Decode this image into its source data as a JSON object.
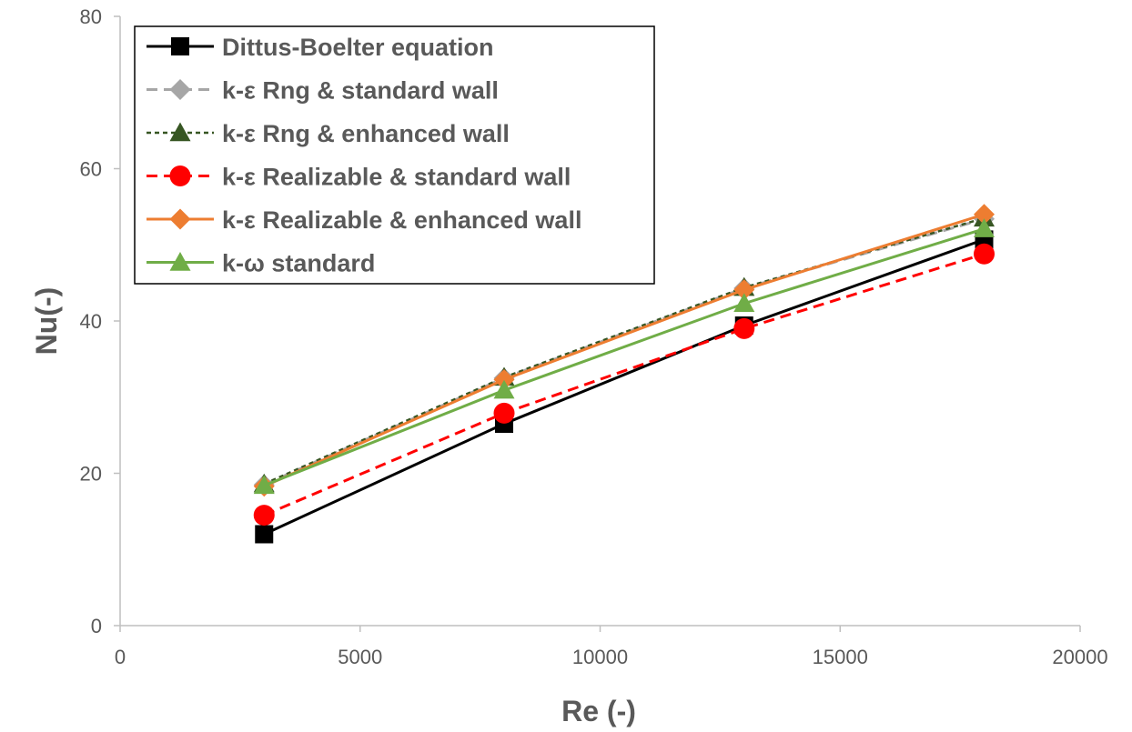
{
  "chart_data": {
    "type": "line",
    "title": "",
    "xlabel": "Re (-)",
    "ylabel": "Nu(-)",
    "xlim": [
      0,
      20000
    ],
    "ylim": [
      0,
      80
    ],
    "xticks": [
      "0",
      "5000",
      "10000",
      "15000",
      "20000"
    ],
    "yticks": [
      "0",
      "20",
      "40",
      "60",
      "80"
    ],
    "grid": false,
    "legend_position": "top-left",
    "x": [
      3000,
      8000,
      13000,
      18000
    ],
    "series": [
      {
        "name": "Dittus-Boelter equation",
        "values": [
          12.0,
          26.5,
          39.4,
          50.7
        ],
        "color": "#000000",
        "marker": "square",
        "line": "solid"
      },
      {
        "name": "k-ε Rng & standard wall",
        "values": [
          18.5,
          32.5,
          44.3,
          53.4
        ],
        "color": "#a6a6a6",
        "marker": "diamond",
        "line": "dashed"
      },
      {
        "name": "k-ε Rng & enhanced wall",
        "values": [
          18.6,
          32.6,
          44.4,
          53.5
        ],
        "color": "#375623",
        "marker": "triangle",
        "line": "dotted"
      },
      {
        "name": "k-ε Realizable & standard wall",
        "values": [
          14.5,
          27.9,
          39.0,
          48.8
        ],
        "color": "#ff0000",
        "marker": "circle",
        "line": "dashed"
      },
      {
        "name": "k-ε Realizable & enhanced wall",
        "values": [
          18.3,
          32.3,
          44.1,
          54.0
        ],
        "color": "#ed7d31",
        "marker": "diamond",
        "line": "solid"
      },
      {
        "name": "k-ω standard",
        "values": [
          18.4,
          30.9,
          42.3,
          52.1
        ],
        "color": "#70ad47",
        "marker": "triangle",
        "line": "solid"
      }
    ]
  }
}
